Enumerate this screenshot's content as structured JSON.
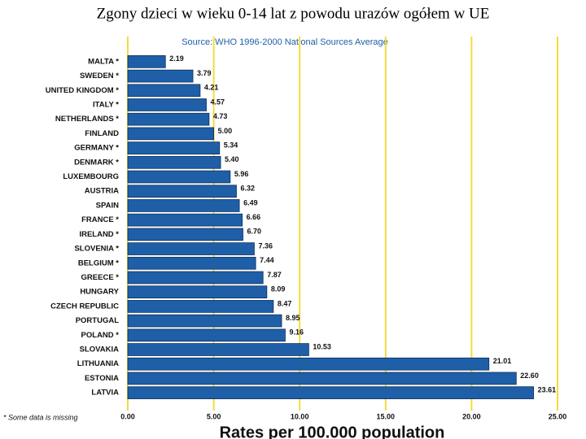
{
  "chart_data": {
    "type": "bar",
    "orientation": "horizontal",
    "title": "Zgony dzieci w wieku 0-14 lat z powodu urazów  ogółem w UE",
    "subtitle": "Source:  WHO  1996-2000 National Sources Average",
    "footnote": "* Some data is missing",
    "x_label": "Rates per 100.000 population",
    "categories": [
      "MALTA *",
      "SWEDEN *",
      "UNITED KINGDOM *",
      "ITALY *",
      "NETHERLANDS *",
      "FINLAND",
      "GERMANY *",
      "DENMARK *",
      "LUXEMBOURG",
      "AUSTRIA",
      "SPAIN",
      "FRANCE *",
      "IRELAND *",
      "SLOVENIA *",
      "BELGIUM *",
      "GREECE *",
      "HUNGARY",
      "CZECH REPUBLIC",
      "PORTUGAL",
      "POLAND *",
      "SLOVAKIA",
      "LITHUANIA",
      "ESTONIA",
      "LATVIA"
    ],
    "values": [
      2.19,
      3.79,
      4.21,
      4.57,
      4.73,
      5.0,
      5.34,
      5.4,
      5.96,
      6.32,
      6.49,
      6.66,
      6.7,
      7.36,
      7.44,
      7.87,
      8.09,
      8.47,
      8.95,
      9.16,
      10.53,
      21.01,
      22.6,
      23.61
    ],
    "value_labels": [
      "2.19",
      "3.79",
      "4.21",
      "4.57",
      "4.73",
      "5.00",
      "5.34",
      "5.40",
      "5.96",
      "6.32",
      "6.49",
      "6.66",
      "6.70",
      "7.36",
      "7.44",
      "7.87",
      "8.09",
      "8.47",
      "8.95",
      "9.16",
      "10.53",
      "21.01",
      "22.60",
      "23.61"
    ],
    "color": "#1f5fa8",
    "xlim": [
      0,
      25
    ],
    "xticks": [
      {
        "value": 0,
        "label": "0.00"
      },
      {
        "value": 5,
        "label": "5.00"
      },
      {
        "value": 10,
        "label": "10.00"
      },
      {
        "value": 15,
        "label": "15.00"
      },
      {
        "value": 20,
        "label": "20.00"
      },
      {
        "value": 25,
        "label": "25.00"
      }
    ],
    "grid": true,
    "grid_color": "#f2dc3c"
  }
}
